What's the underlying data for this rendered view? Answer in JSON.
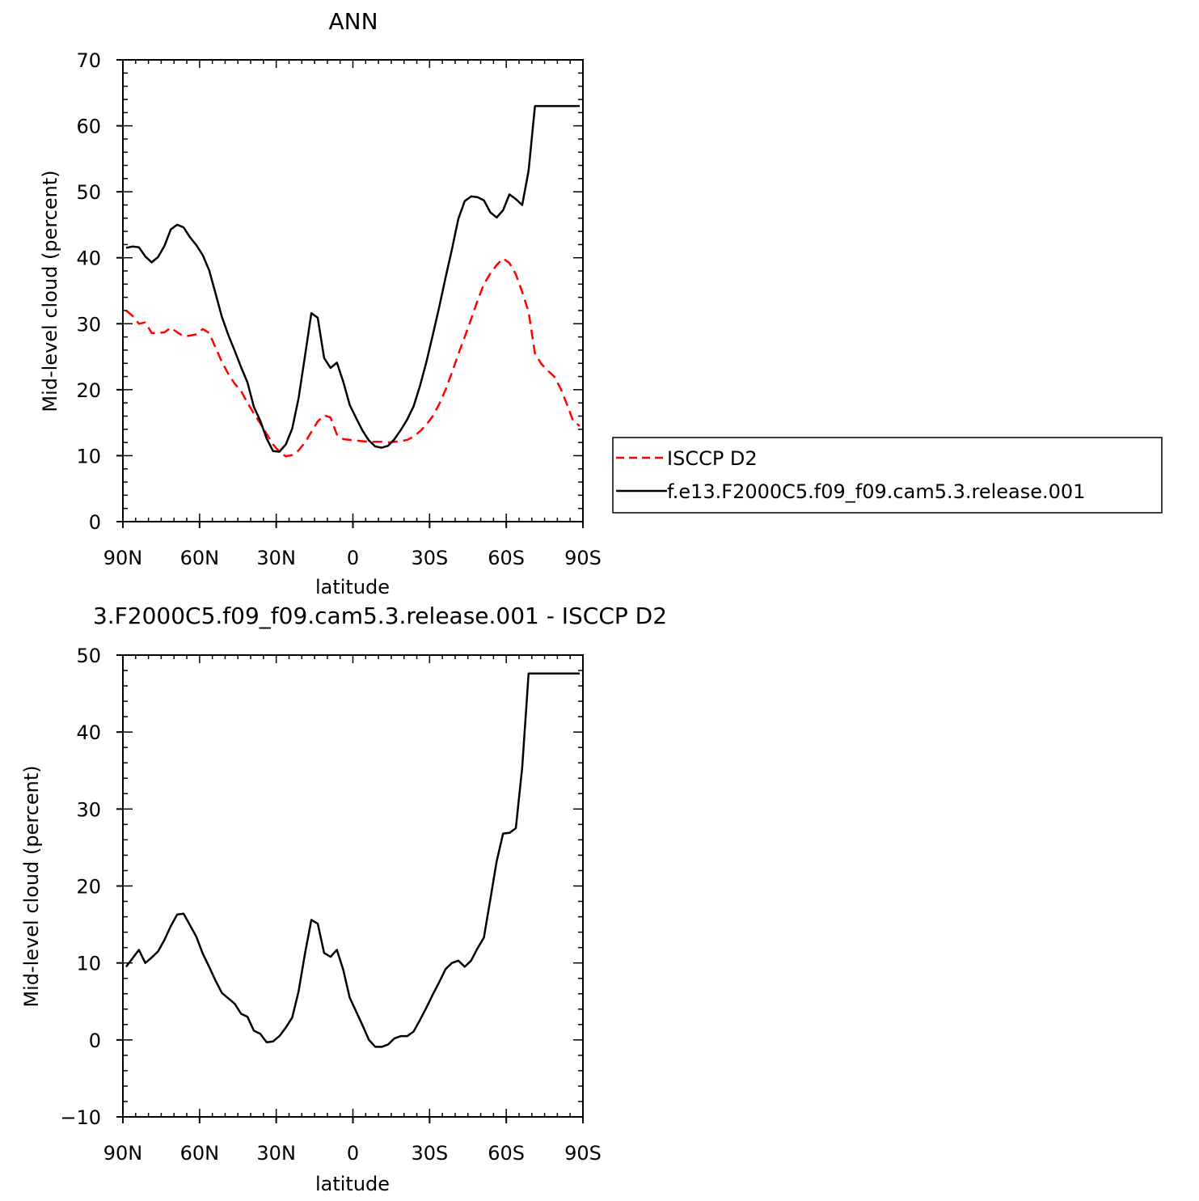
{
  "chart_data": [
    {
      "type": "line",
      "title": "ANN",
      "xlabel": "latitude",
      "ylabel": "Mid-level cloud (percent)",
      "xlim": [
        90,
        -90
      ],
      "ylim": [
        0,
        70
      ],
      "x_ticks": [
        90,
        60,
        30,
        0,
        -30,
        -60,
        -90
      ],
      "x_tick_labels": [
        "90N",
        "60N",
        "30N",
        "0",
        "30S",
        "60S",
        "90S"
      ],
      "y_ticks": [
        0,
        10,
        20,
        30,
        40,
        50,
        60,
        70
      ],
      "y_tick_labels": [
        "0",
        "10",
        "20",
        "30",
        "40",
        "50",
        "60",
        "70"
      ],
      "legend_position": "outside-right",
      "series": [
        {
          "name": "ISCCP D2",
          "color": "#ff0000",
          "dashed": true,
          "x": [
            88.75,
            86.25,
            83.75,
            81.25,
            78.75,
            76.25,
            73.75,
            71.25,
            68.75,
            66.25,
            63.75,
            61.25,
            58.75,
            56.25,
            53.75,
            51.25,
            48.75,
            46.25,
            43.75,
            41.25,
            38.75,
            36.25,
            33.75,
            31.25,
            28.75,
            26.25,
            23.75,
            21.25,
            18.75,
            16.25,
            13.75,
            11.25,
            8.75,
            6.25,
            3.75,
            1.25,
            -1.25,
            -3.75,
            -6.25,
            -8.75,
            -11.25,
            -13.75,
            -16.25,
            -18.75,
            -21.25,
            -23.75,
            -26.25,
            -28.75,
            -31.25,
            -33.75,
            -36.25,
            -38.75,
            -41.25,
            -43.75,
            -46.25,
            -48.75,
            -51.25,
            -53.75,
            -56.25,
            -58.75,
            -61.25,
            -63.75,
            -66.25,
            -68.75,
            -71.25,
            -73.75,
            -76.25,
            -78.75,
            -81.25,
            -83.75,
            -86.25,
            -88.75
          ],
          "y": [
            32,
            31.2,
            30,
            30.2,
            28.6,
            28.6,
            28.7,
            29.4,
            28.7,
            28.1,
            28.2,
            28.4,
            29.2,
            28.6,
            26.4,
            24.2,
            22.4,
            20.9,
            19.8,
            18.0,
            16.4,
            14.9,
            13.3,
            11.7,
            10.6,
            9.9,
            10.1,
            10.8,
            12.0,
            13.6,
            15.2,
            16.1,
            15.8,
            13.2,
            12.5,
            12.4,
            12.3,
            12.2,
            12.1,
            12.1,
            12.1,
            12.0,
            12.1,
            12.2,
            12.4,
            12.9,
            13.7,
            14.7,
            16.0,
            17.8,
            20.0,
            22.6,
            25.4,
            28.0,
            30.7,
            33.5,
            36.0,
            37.6,
            38.9,
            39.9,
            39.2,
            37.5,
            34.8,
            31.8,
            25.5,
            23.9,
            22.9,
            22.0,
            20.2,
            17.8,
            15.2,
            14.5
          ]
        },
        {
          "name": "f.e13.F2000C5.f09_f09.cam5.3.release.001",
          "color": "#000000",
          "dashed": false,
          "x": [
            88.75,
            86.25,
            83.75,
            81.25,
            78.75,
            76.25,
            73.75,
            71.25,
            68.75,
            66.25,
            63.75,
            61.25,
            58.75,
            56.25,
            53.75,
            51.25,
            48.75,
            46.25,
            43.75,
            41.25,
            38.75,
            36.25,
            33.75,
            31.25,
            28.75,
            26.25,
            23.75,
            21.25,
            18.75,
            16.25,
            13.75,
            11.25,
            8.75,
            6.25,
            3.75,
            1.25,
            -1.25,
            -3.75,
            -6.25,
            -8.75,
            -11.25,
            -13.75,
            -16.25,
            -18.75,
            -21.25,
            -23.75,
            -26.25,
            -28.75,
            -31.25,
            -33.75,
            -36.25,
            -38.75,
            -41.25,
            -43.75,
            -46.25,
            -48.75,
            -51.25,
            -53.75,
            -56.25,
            -58.75,
            -61.25,
            -63.75,
            -66.25,
            -68.75,
            -71.25,
            -73.75,
            -76.25,
            -78.75,
            -81.25,
            -83.75,
            -86.25,
            -88.75
          ],
          "y": [
            41.5,
            41.7,
            41.6,
            40.2,
            39.3,
            40.1,
            41.8,
            44.3,
            45.0,
            44.6,
            43.1,
            41.9,
            40.4,
            38.1,
            34.6,
            31.0,
            28.3,
            25.9,
            23.4,
            21.1,
            17.4,
            15.3,
            12.6,
            10.7,
            10.6,
            11.7,
            14.1,
            18.7,
            25.1,
            31.6,
            30.9,
            24.8,
            23.3,
            24.1,
            21.2,
            17.7,
            15.7,
            13.8,
            12.3,
            11.4,
            11.2,
            11.5,
            12.5,
            13.9,
            15.5,
            17.5,
            20.6,
            24.2,
            28.3,
            32.5,
            37.0,
            41.3,
            45.9,
            48.6,
            49.3,
            49.2,
            48.7,
            46.9,
            46.1,
            47.2,
            49.6,
            48.9,
            48.0,
            53.2,
            63.0,
            63.0,
            63.0,
            63.0,
            63.0,
            63.0,
            63.0,
            63.0
          ]
        }
      ]
    },
    {
      "type": "line",
      "title": "3.F2000C5.f09_f09.cam5.3.release.001 - ISCCP D2",
      "xlabel": "latitude",
      "ylabel": "Mid-level cloud (percent)",
      "xlim": [
        90,
        -90
      ],
      "ylim": [
        -10,
        50
      ],
      "x_ticks": [
        90,
        60,
        30,
        0,
        -30,
        -60,
        -90
      ],
      "x_tick_labels": [
        "90N",
        "60N",
        "30N",
        "0",
        "30S",
        "60S",
        "90S"
      ],
      "y_ticks": [
        -10,
        0,
        10,
        20,
        30,
        40,
        50
      ],
      "y_tick_labels": [
        "−10",
        "0",
        "10",
        "20",
        "30",
        "40",
        "50"
      ],
      "series": [
        {
          "color": "#000000",
          "dashed": false,
          "x": [
            88.75,
            86.25,
            83.75,
            81.25,
            78.75,
            76.25,
            73.75,
            71.25,
            68.75,
            66.25,
            63.75,
            61.25,
            58.75,
            56.25,
            53.75,
            51.25,
            48.75,
            46.25,
            43.75,
            41.25,
            38.75,
            36.25,
            33.75,
            31.25,
            28.75,
            26.25,
            23.75,
            21.25,
            18.75,
            16.25,
            13.75,
            11.25,
            8.75,
            6.25,
            3.75,
            1.25,
            -1.25,
            -3.75,
            -6.25,
            -8.75,
            -11.25,
            -13.75,
            -16.25,
            -18.75,
            -21.25,
            -23.75,
            -26.25,
            -28.75,
            -31.25,
            -33.75,
            -36.25,
            -38.75,
            -41.25,
            -43.75,
            -46.25,
            -48.75,
            -51.25,
            -53.75,
            -56.25,
            -58.75,
            -61.25,
            -63.75,
            -66.25,
            -68.75,
            -71.25,
            -73.75,
            -76.25,
            -78.75,
            -81.25,
            -83.75,
            -86.25,
            -88.75
          ],
          "y": [
            9.5,
            10.6,
            11.7,
            10.0,
            10.7,
            11.5,
            13.0,
            14.8,
            16.3,
            16.4,
            14.9,
            13.4,
            11.2,
            9.5,
            7.7,
            6.1,
            5.4,
            4.7,
            3.4,
            3.0,
            1.2,
            0.8,
            -0.3,
            -0.2,
            0.5,
            1.6,
            2.9,
            6.3,
            11.2,
            15.6,
            15.1,
            11.3,
            10.8,
            11.7,
            9.1,
            5.5,
            3.7,
            1.9,
            0.0,
            -0.9,
            -0.9,
            -0.6,
            0.2,
            0.5,
            0.5,
            1.1,
            2.6,
            4.2,
            5.9,
            7.5,
            9.2,
            10.0,
            10.3,
            9.5,
            10.3,
            11.9,
            13.3,
            18.2,
            23.2,
            26.8,
            26.9,
            27.5,
            35.4,
            47.6,
            47.6,
            47.6,
            47.6,
            47.6,
            47.6,
            47.6,
            47.6,
            47.6
          ]
        }
      ]
    }
  ]
}
